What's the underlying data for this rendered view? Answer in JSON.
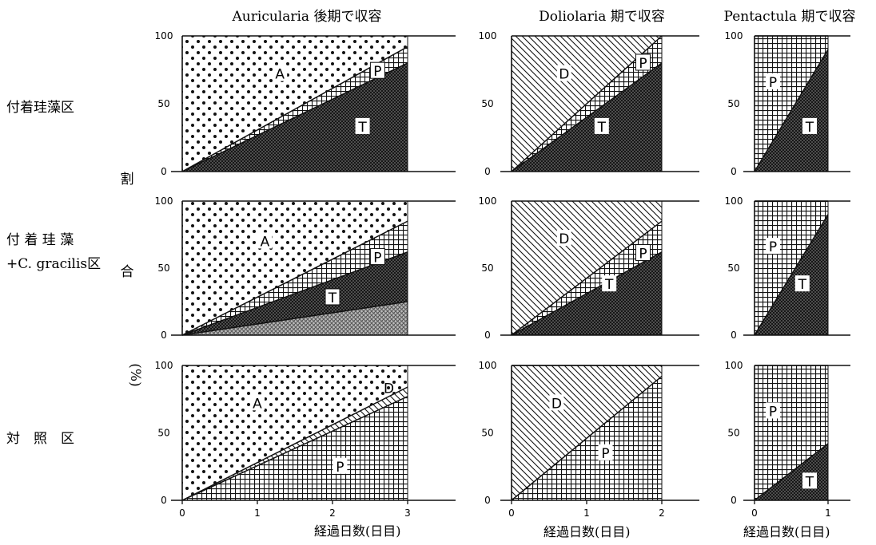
{
  "figure": {
    "column_titles": [
      "Auricularia 後期で収容",
      "Doliolaria 期で収容",
      "Pentactula 期で収容"
    ],
    "row_labels": [
      {
        "line1": "付着珪藻区",
        "line2": ""
      },
      {
        "line1": "付 着 珪 藻",
        "line2": "+C. gracilis区"
      },
      {
        "line1": "対　照　区",
        "line2": ""
      }
    ],
    "ylabel_chars": [
      "割",
      "合",
      "(%)"
    ],
    "xlabel": "経過日数(日目)"
  },
  "colors": {
    "ink": "#111111",
    "background": "#ffffff"
  },
  "legend_codes": {
    "A": "Auricularia",
    "D": "Doliolaria",
    "P": "Pentactula",
    "T": "T"
  },
  "chart_data": [
    {
      "type": "area",
      "row": 0,
      "col": 0,
      "x_ticks": [],
      "xlim": [
        0,
        3
      ],
      "ylim": [
        0,
        100
      ],
      "y_ticks": [
        0,
        50,
        100
      ],
      "boundaries": [
        {
          "x": [
            0,
            3
          ],
          "y": [
            0,
            80
          ]
        },
        {
          "x": [
            0,
            3
          ],
          "y": [
            0,
            92
          ]
        }
      ],
      "bands": [
        {
          "label": "T",
          "pattern": "dense-cross",
          "label_at": [
            2.4,
            33
          ]
        },
        {
          "label": "P",
          "pattern": "grid",
          "label_at": [
            2.6,
            74
          ],
          "boxed": true
        },
        {
          "label": "A",
          "pattern": "dots",
          "label_at": [
            1.3,
            72
          ]
        }
      ]
    },
    {
      "type": "area",
      "row": 0,
      "col": 1,
      "x_ticks": [],
      "xlim": [
        0,
        2
      ],
      "ylim": [
        0,
        100
      ],
      "y_ticks": [
        0,
        50,
        100
      ],
      "boundaries": [
        {
          "x": [
            0,
            2
          ],
          "y": [
            0,
            80
          ]
        },
        {
          "x": [
            0,
            2
          ],
          "y": [
            0,
            100
          ]
        }
      ],
      "bands": [
        {
          "label": "T",
          "pattern": "dense-cross",
          "label_at": [
            1.2,
            33
          ]
        },
        {
          "label": "P",
          "pattern": "grid",
          "label_at": [
            1.75,
            80
          ],
          "boxed": true
        },
        {
          "label": "D",
          "pattern": "diag",
          "label_at": [
            0.7,
            72
          ]
        }
      ]
    },
    {
      "type": "area",
      "row": 0,
      "col": 2,
      "x_ticks": [],
      "xlim": [
        0,
        1
      ],
      "ylim": [
        0,
        100
      ],
      "y_ticks": [
        0,
        50,
        100
      ],
      "boundaries": [
        {
          "x": [
            0,
            1
          ],
          "y": [
            0,
            90
          ]
        },
        {
          "x": [
            0,
            1
          ],
          "y": [
            100,
            100
          ]
        }
      ],
      "bands": [
        {
          "label": "T",
          "pattern": "dense-cross",
          "label_at": [
            0.75,
            33
          ]
        },
        {
          "label": "P",
          "pattern": "grid",
          "label_at": [
            0.25,
            66
          ]
        }
      ]
    },
    {
      "type": "area",
      "row": 1,
      "col": 0,
      "x_ticks": [],
      "xlim": [
        0,
        3
      ],
      "ylim": [
        0,
        100
      ],
      "y_ticks": [
        0,
        50,
        100
      ],
      "boundaries": [
        {
          "x": [
            0,
            3
          ],
          "y": [
            0,
            25
          ]
        },
        {
          "x": [
            0,
            3
          ],
          "y": [
            0,
            62
          ]
        },
        {
          "x": [
            0,
            3
          ],
          "y": [
            0,
            85
          ]
        }
      ],
      "bands": [
        {
          "label": "",
          "pattern": "light-cross",
          "label_at": [
            2.5,
            14
          ]
        },
        {
          "label": "T",
          "pattern": "dense-cross",
          "label_at": [
            2.0,
            28
          ],
          "boxed": true
        },
        {
          "label": "P",
          "pattern": "grid",
          "label_at": [
            2.6,
            58
          ],
          "boxed": true
        },
        {
          "label": "A",
          "pattern": "dots",
          "label_at": [
            1.1,
            70
          ]
        }
      ]
    },
    {
      "type": "area",
      "row": 1,
      "col": 1,
      "x_ticks": [],
      "xlim": [
        0,
        2
      ],
      "ylim": [
        0,
        100
      ],
      "y_ticks": [
        0,
        50,
        100
      ],
      "boundaries": [
        {
          "x": [
            0,
            2
          ],
          "y": [
            0,
            62
          ]
        },
        {
          "x": [
            0,
            2
          ],
          "y": [
            0,
            85
          ]
        }
      ],
      "bands": [
        {
          "label": "T",
          "pattern": "dense-cross",
          "label_at": [
            1.3,
            38
          ]
        },
        {
          "label": "P",
          "pattern": "grid",
          "label_at": [
            1.75,
            61
          ],
          "boxed": true
        },
        {
          "label": "D",
          "pattern": "diag",
          "label_at": [
            0.7,
            72
          ]
        }
      ]
    },
    {
      "type": "area",
      "row": 1,
      "col": 2,
      "x_ticks": [],
      "xlim": [
        0,
        1
      ],
      "ylim": [
        0,
        100
      ],
      "y_ticks": [
        0,
        50,
        100
      ],
      "boundaries": [
        {
          "x": [
            0,
            1
          ],
          "y": [
            0,
            90
          ]
        },
        {
          "x": [
            0,
            1
          ],
          "y": [
            100,
            100
          ]
        }
      ],
      "bands": [
        {
          "label": "T",
          "pattern": "dense-cross",
          "label_at": [
            0.65,
            38
          ]
        },
        {
          "label": "P",
          "pattern": "grid",
          "label_at": [
            0.25,
            66
          ]
        }
      ]
    },
    {
      "type": "area",
      "row": 2,
      "col": 0,
      "x_ticks": [
        "0",
        "1",
        "2",
        "3"
      ],
      "xlim": [
        0,
        3
      ],
      "ylim": [
        0,
        100
      ],
      "y_ticks": [
        0,
        50,
        100
      ],
      "boundaries": [
        {
          "x": [
            0,
            3
          ],
          "y": [
            0,
            77
          ]
        },
        {
          "x": [
            0,
            3
          ],
          "y": [
            0,
            84
          ]
        }
      ],
      "bands": [
        {
          "label": "P",
          "pattern": "grid",
          "label_at": [
            2.1,
            25
          ]
        },
        {
          "label": "D",
          "pattern": "diag",
          "label_at": [
            2.75,
            83
          ],
          "small": true
        },
        {
          "label": "A",
          "pattern": "dots",
          "label_at": [
            1.0,
            72
          ]
        }
      ]
    },
    {
      "type": "area",
      "row": 2,
      "col": 1,
      "x_ticks": [
        "0",
        "1",
        "2"
      ],
      "xlim": [
        0,
        2
      ],
      "ylim": [
        0,
        100
      ],
      "y_ticks": [
        0,
        50,
        100
      ],
      "boundaries": [
        {
          "x": [
            0,
            2
          ],
          "y": [
            0,
            92
          ]
        },
        {
          "x": [
            0,
            2
          ],
          "y": [
            100,
            100
          ]
        }
      ],
      "bands": [
        {
          "label": "P",
          "pattern": "grid",
          "label_at": [
            1.25,
            35
          ]
        },
        {
          "label": "D",
          "pattern": "diag",
          "label_at": [
            0.6,
            72
          ]
        }
      ]
    },
    {
      "type": "area",
      "row": 2,
      "col": 2,
      "x_ticks": [
        "0",
        "1"
      ],
      "xlim": [
        0,
        1
      ],
      "ylim": [
        0,
        100
      ],
      "y_ticks": [
        0,
        50,
        100
      ],
      "boundaries": [
        {
          "x": [
            0,
            1
          ],
          "y": [
            0,
            42
          ]
        },
        {
          "x": [
            0,
            1
          ],
          "y": [
            100,
            100
          ]
        }
      ],
      "bands": [
        {
          "label": "T",
          "pattern": "dense-cross",
          "label_at": [
            0.75,
            14
          ]
        },
        {
          "label": "P",
          "pattern": "grid",
          "label_at": [
            0.25,
            66
          ]
        }
      ]
    }
  ]
}
